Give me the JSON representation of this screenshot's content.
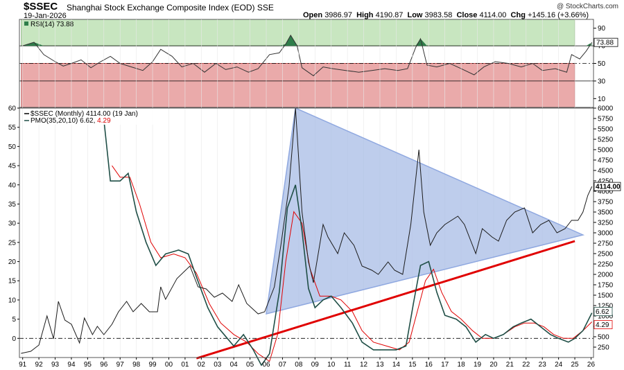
{
  "header": {
    "ticker": "$SSEC",
    "name": "Shanghai Stock Exchange Composite Index (EOD)",
    "exchange": "SSE",
    "date": "19-Jan-2026",
    "open_label": "Open",
    "open": "3986.97",
    "high_label": "High",
    "high": "4190.87",
    "low_label": "Low",
    "low": "3983.58",
    "close_label": "Close",
    "close": "4114.00",
    "chg_label": "Chg",
    "chg": "+145.16 (+3.66%)",
    "credit": "@ StockCharts.com"
  },
  "colors": {
    "price": "#1a1a1a",
    "pmo": "#1f4e46",
    "pmo_signal": "#e00000",
    "triangle_fill": "#a8bce6",
    "triangle_edge": "#8fa8e0",
    "trendline": "#e00000",
    "rsi_overbought": "#c8e6c0",
    "rsi_oversold": "#eaaaaa",
    "rsi_fill": "#2f7d4a"
  },
  "chart_data": [
    {
      "type": "line",
      "panel": "rsi",
      "title": "RSI(14) 73.88",
      "legend_label": "RSI(14)",
      "legend_value": "73.88",
      "ylim": [
        0,
        100
      ],
      "y_ticks": [
        10,
        30,
        50,
        70,
        90
      ],
      "ref_lines": [
        30,
        50,
        70
      ],
      "last_value_badge": "73.88",
      "series": [
        {
          "name": "RSI(14)",
          "points": [
            [
              1991.0,
              70
            ],
            [
              1991.7,
              74
            ],
            [
              1992.3,
              60
            ],
            [
              1993.0,
              52
            ],
            [
              1993.5,
              47
            ],
            [
              1994.0,
              50
            ],
            [
              1994.6,
              54
            ],
            [
              1995.2,
              45
            ],
            [
              1995.8,
              52
            ],
            [
              1996.4,
              58
            ],
            [
              1997.0,
              50
            ],
            [
              1997.7,
              46
            ],
            [
              1998.4,
              42
            ],
            [
              1999.0,
              52
            ],
            [
              1999.5,
              66
            ],
            [
              2000.2,
              58
            ],
            [
              2000.8,
              46
            ],
            [
              2001.5,
              50
            ],
            [
              2002.2,
              40
            ],
            [
              2002.9,
              50
            ],
            [
              2003.5,
              43
            ],
            [
              2004.2,
              46
            ],
            [
              2004.9,
              40
            ],
            [
              2005.5,
              44
            ],
            [
              2006.2,
              60
            ],
            [
              2006.8,
              62
            ],
            [
              2007.2,
              72
            ],
            [
              2007.5,
              82
            ],
            [
              2007.9,
              70
            ],
            [
              2008.2,
              45
            ],
            [
              2008.9,
              36
            ],
            [
              2009.5,
              46
            ],
            [
              2010.1,
              44
            ],
            [
              2010.9,
              42
            ],
            [
              2011.7,
              40
            ],
            [
              2012.5,
              42
            ],
            [
              2013.3,
              44
            ],
            [
              2014.1,
              42
            ],
            [
              2014.7,
              44
            ],
            [
              2015.2,
              68
            ],
            [
              2015.5,
              78
            ],
            [
              2015.9,
              48
            ],
            [
              2016.5,
              46
            ],
            [
              2017.3,
              50
            ],
            [
              2018.0,
              44
            ],
            [
              2018.8,
              37
            ],
            [
              2019.4,
              46
            ],
            [
              2020.1,
              52
            ],
            [
              2020.9,
              50
            ],
            [
              2021.7,
              46
            ],
            [
              2022.4,
              50
            ],
            [
              2023.0,
              42
            ],
            [
              2023.8,
              44
            ],
            [
              2024.5,
              40
            ],
            [
              2024.8,
              60
            ],
            [
              2025.3,
              55
            ],
            [
              2025.7,
              64
            ],
            [
              2026.05,
              73.88
            ]
          ]
        }
      ]
    },
    {
      "type": "line",
      "panel": "price",
      "title": "$SSEC (Monthly) 4114.00 (19 Jan)",
      "legend_label": "$SSEC (Monthly)",
      "legend_value": "4114.00 (19 Jan)",
      "ylim": [
        0,
        6000
      ],
      "y_ticks": [
        250,
        500,
        750,
        1000,
        1250,
        1500,
        1750,
        2000,
        2250,
        2500,
        2750,
        3000,
        3250,
        3500,
        3750,
        4000,
        4250,
        4500,
        4750,
        5000,
        5250,
        5500,
        5750,
        6000
      ],
      "last_value_badge": "4114.00",
      "series": [
        {
          "name": "$SSEC",
          "points": [
            [
              1990.9,
              100
            ],
            [
              1991.5,
              150
            ],
            [
              1992.0,
              300
            ],
            [
              1992.5,
              1000
            ],
            [
              1992.9,
              450
            ],
            [
              1993.2,
              1350
            ],
            [
              1993.6,
              900
            ],
            [
              1994.0,
              800
            ],
            [
              1994.5,
              350
            ],
            [
              1994.8,
              950
            ],
            [
              1995.3,
              550
            ],
            [
              1995.6,
              750
            ],
            [
              1996.0,
              550
            ],
            [
              1996.5,
              800
            ],
            [
              1996.9,
              1100
            ],
            [
              1997.4,
              1350
            ],
            [
              1997.8,
              1100
            ],
            [
              1998.3,
              1300
            ],
            [
              1998.8,
              1100
            ],
            [
              1999.3,
              1100
            ],
            [
              1999.5,
              1700
            ],
            [
              1999.8,
              1400
            ],
            [
              2000.5,
              1900
            ],
            [
              2001.3,
              2200
            ],
            [
              2001.8,
              1700
            ],
            [
              2002.3,
              1650
            ],
            [
              2002.8,
              1450
            ],
            [
              2003.3,
              1550
            ],
            [
              2003.9,
              1350
            ],
            [
              2004.3,
              1750
            ],
            [
              2004.8,
              1300
            ],
            [
              2005.5,
              1050
            ],
            [
              2005.9,
              1100
            ],
            [
              2006.5,
              1700
            ],
            [
              2006.9,
              2700
            ],
            [
              2007.4,
              4100
            ],
            [
              2007.8,
              6000
            ],
            [
              2008.2,
              3500
            ],
            [
              2008.6,
              2300
            ],
            [
              2008.9,
              1800
            ],
            [
              2009.5,
              3200
            ],
            [
              2009.8,
              2900
            ],
            [
              2010.4,
              2500
            ],
            [
              2010.8,
              3000
            ],
            [
              2011.4,
              2700
            ],
            [
              2011.9,
              2200
            ],
            [
              2012.5,
              2100
            ],
            [
              2012.9,
              2000
            ],
            [
              2013.5,
              2300
            ],
            [
              2013.9,
              2100
            ],
            [
              2014.4,
              2000
            ],
            [
              2014.9,
              3200
            ],
            [
              2015.4,
              5000
            ],
            [
              2015.7,
              3500
            ],
            [
              2016.1,
              2700
            ],
            [
              2016.5,
              3000
            ],
            [
              2017.0,
              3200
            ],
            [
              2017.8,
              3400
            ],
            [
              2018.2,
              3200
            ],
            [
              2018.9,
              2500
            ],
            [
              2019.3,
              3100
            ],
            [
              2019.9,
              2900
            ],
            [
              2020.3,
              2800
            ],
            [
              2020.8,
              3300
            ],
            [
              2021.3,
              3500
            ],
            [
              2021.9,
              3600
            ],
            [
              2022.4,
              3000
            ],
            [
              2022.9,
              3200
            ],
            [
              2023.4,
              3300
            ],
            [
              2023.9,
              3000
            ],
            [
              2024.4,
              3100
            ],
            [
              2024.8,
              3300
            ],
            [
              2025.2,
              3300
            ],
            [
              2025.5,
              3500
            ],
            [
              2025.8,
              3900
            ],
            [
              2026.05,
              4114
            ]
          ]
        }
      ],
      "annotations": {
        "triangle": [
          [
            2006.0,
            1050
          ],
          [
            2007.8,
            6000
          ],
          [
            2025.5,
            2950
          ]
        ],
        "red_trendline": [
          [
            2001.7,
            -20
          ],
          [
            2025.0,
            2800
          ]
        ]
      }
    },
    {
      "type": "line",
      "panel": "pmo",
      "title": "PMO(35,20,10) 6.62, 4.29",
      "legend_label": "PMO(35,20,10)",
      "legend_value": "6.62",
      "legend_value2": "4.29",
      "ylim": [
        -5,
        60
      ],
      "y_ticks": [
        0,
        5,
        10,
        15,
        20,
        25,
        30,
        35,
        40,
        45,
        50,
        55,
        60
      ],
      "zero_line": 0,
      "last_value_badges": [
        "6.62",
        "4.29"
      ],
      "series": [
        {
          "name": "PMO",
          "points": [
            [
              1996.0,
              57
            ],
            [
              1996.4,
              41
            ],
            [
              1997.0,
              41
            ],
            [
              1997.5,
              43
            ],
            [
              1998.0,
              33
            ],
            [
              1998.6,
              25
            ],
            [
              1999.2,
              19
            ],
            [
              1999.8,
              22
            ],
            [
              2000.6,
              23
            ],
            [
              2001.2,
              22
            ],
            [
              2001.7,
              16
            ],
            [
              2002.4,
              8
            ],
            [
              2003.0,
              3
            ],
            [
              2003.6,
              0
            ],
            [
              2004.0,
              -2
            ],
            [
              2004.6,
              1
            ],
            [
              2005.2,
              -3
            ],
            [
              2005.7,
              -7
            ],
            [
              2006.2,
              -4
            ],
            [
              2006.8,
              12
            ],
            [
              2007.3,
              34
            ],
            [
              2007.8,
              40
            ],
            [
              2008.2,
              28
            ],
            [
              2008.6,
              13
            ],
            [
              2009.0,
              8
            ],
            [
              2009.5,
              10
            ],
            [
              2010.0,
              11
            ],
            [
              2010.6,
              8
            ],
            [
              2011.3,
              4
            ],
            [
              2011.9,
              -1
            ],
            [
              2012.6,
              -3
            ],
            [
              2013.3,
              -3
            ],
            [
              2014.0,
              -3
            ],
            [
              2014.6,
              -2
            ],
            [
              2015.1,
              10
            ],
            [
              2015.5,
              19
            ],
            [
              2016.0,
              20
            ],
            [
              2016.5,
              12
            ],
            [
              2017.0,
              6
            ],
            [
              2017.7,
              5
            ],
            [
              2018.3,
              3
            ],
            [
              2018.9,
              -1
            ],
            [
              2019.5,
              1
            ],
            [
              2020.0,
              0
            ],
            [
              2020.6,
              1
            ],
            [
              2021.2,
              3
            ],
            [
              2021.7,
              4
            ],
            [
              2022.3,
              5
            ],
            [
              2022.9,
              3
            ],
            [
              2023.5,
              1
            ],
            [
              2024.0,
              0
            ],
            [
              2024.6,
              -1
            ],
            [
              2025.0,
              0
            ],
            [
              2025.5,
              2
            ],
            [
              2026.05,
              6.62
            ]
          ]
        },
        {
          "name": "Signal",
          "points": [
            [
              1996.5,
              45
            ],
            [
              1997.0,
              42
            ],
            [
              1997.6,
              42
            ],
            [
              1998.2,
              35
            ],
            [
              1998.9,
              25
            ],
            [
              1999.5,
              21
            ],
            [
              2000.3,
              22
            ],
            [
              2001.0,
              21
            ],
            [
              2001.7,
              17
            ],
            [
              2002.5,
              9
            ],
            [
              2003.2,
              4
            ],
            [
              2004.0,
              1
            ],
            [
              2004.8,
              -1
            ],
            [
              2005.5,
              -4
            ],
            [
              2006.2,
              -6
            ],
            [
              2006.7,
              1
            ],
            [
              2007.2,
              20
            ],
            [
              2007.7,
              33
            ],
            [
              2008.2,
              30
            ],
            [
              2008.7,
              18
            ],
            [
              2009.3,
              11
            ],
            [
              2010.0,
              11
            ],
            [
              2010.6,
              10
            ],
            [
              2011.3,
              7
            ],
            [
              2011.9,
              2
            ],
            [
              2012.6,
              -1
            ],
            [
              2013.4,
              -2
            ],
            [
              2014.2,
              -3
            ],
            [
              2014.8,
              -1
            ],
            [
              2015.3,
              7
            ],
            [
              2015.8,
              15
            ],
            [
              2016.3,
              18
            ],
            [
              2016.8,
              12
            ],
            [
              2017.4,
              7
            ],
            [
              2018.0,
              5
            ],
            [
              2018.7,
              2
            ],
            [
              2019.3,
              0
            ],
            [
              2020.0,
              0
            ],
            [
              2020.6,
              1
            ],
            [
              2021.3,
              3
            ],
            [
              2021.9,
              4
            ],
            [
              2022.5,
              4
            ],
            [
              2023.1,
              3
            ],
            [
              2023.7,
              1
            ],
            [
              2024.3,
              0
            ],
            [
              2024.9,
              0
            ],
            [
              2025.5,
              2
            ],
            [
              2026.05,
              4.29
            ]
          ]
        }
      ]
    }
  ],
  "x_axis": {
    "type": "years",
    "range": [
      1990.8,
      2026.15
    ],
    "tick_labels": [
      "91",
      "92",
      "93",
      "94",
      "95",
      "96",
      "97",
      "98",
      "99",
      "00",
      "01",
      "02",
      "03",
      "04",
      "05",
      "06",
      "07",
      "08",
      "09",
      "10",
      "11",
      "12",
      "13",
      "14",
      "15",
      "16",
      "17",
      "18",
      "19",
      "20",
      "21",
      "22",
      "23",
      "24",
      "25",
      "26"
    ]
  }
}
